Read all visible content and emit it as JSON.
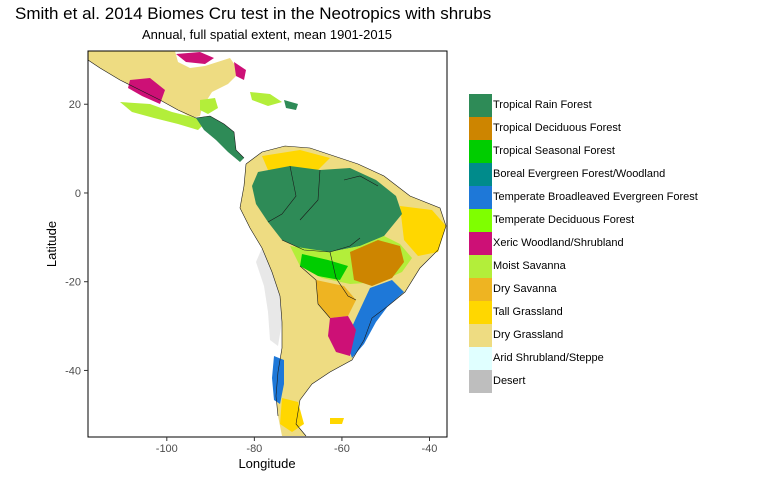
{
  "title": "Smith et al. 2014 Biomes Cru test in the Neotropics with shrubs",
  "subtitle": "Annual, full spatial extent, mean 1901-2015",
  "axes": {
    "x_title": "Longitude",
    "y_title": "Latitude",
    "x_ticks": [
      {
        "value": -100,
        "label": "-100"
      },
      {
        "value": -80,
        "label": "-80"
      },
      {
        "value": -60,
        "label": "-60"
      },
      {
        "value": -40,
        "label": "-40"
      }
    ],
    "y_ticks": [
      {
        "value": 20,
        "label": "20"
      },
      {
        "value": 0,
        "label": "0"
      },
      {
        "value": -20,
        "label": "-20"
      },
      {
        "value": -40,
        "label": "-40"
      }
    ],
    "x_range": [
      -118,
      -36
    ],
    "y_range": [
      -55,
      32
    ]
  },
  "legend": [
    {
      "name": "Tropical Rain Forest",
      "color": "#2e8b57"
    },
    {
      "name": "Tropical Deciduous Forest",
      "color": "#cd8500"
    },
    {
      "name": "Tropical Seasonal Forest",
      "color": "#00cd00"
    },
    {
      "name": "Boreal Evergreen Forest/Woodland",
      "color": "#008b8b"
    },
    {
      "name": "Temperate Broadleaved Evergreen Forest",
      "color": "#1e78d8"
    },
    {
      "name": "Temperate Deciduous Forest",
      "color": "#7fff00"
    },
    {
      "name": "Xeric Woodland/Shrubland",
      "color": "#cd1076"
    },
    {
      "name": "Moist Savanna",
      "color": "#b3ee3a"
    },
    {
      "name": "Dry Savanna",
      "color": "#eeb422"
    },
    {
      "name": "Tall Grassland",
      "color": "#ffd700"
    },
    {
      "name": "Dry Grassland",
      "color": "#eedc82"
    },
    {
      "name": "Arid Shrubland/Steppe",
      "color": "#e0ffff"
    },
    {
      "name": "Desert",
      "color": "#bebebe"
    }
  ]
}
